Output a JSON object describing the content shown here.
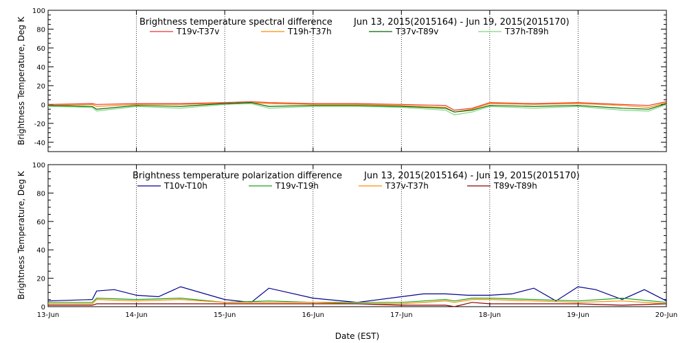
{
  "chart_data": [
    {
      "type": "line",
      "title": "Brightness temperature spectral difference",
      "date_range": "Jun 13, 2015(2015164) - Jun 19, 2015(2015170)",
      "ylabel": "Brightness Temperature, Deg K",
      "xlabel": "",
      "ylim": [
        -50,
        100
      ],
      "yticks": [
        "-40",
        "-20",
        "0",
        "20",
        "40",
        "60",
        "80",
        "100"
      ],
      "xlim": [
        0,
        7
      ],
      "xticks": [
        "13-Jun",
        "14-Jun",
        "15-Jun",
        "16-Jun",
        "17-Jun",
        "18-Jun",
        "19-Jun",
        "20-Jun"
      ],
      "grid": "vertical dotted",
      "series": [
        {
          "name": "T19v-T37v",
          "color": "#e8352a",
          "x": [
            0,
            0.5,
            0.55,
            1,
            1.5,
            2,
            2.3,
            2.5,
            3,
            3.5,
            4,
            4.5,
            4.6,
            4.8,
            5,
            5.5,
            6,
            6.5,
            6.8,
            7
          ],
          "values": [
            0,
            1,
            0,
            1,
            1,
            2,
            3,
            2,
            1,
            1,
            0,
            -1,
            -6,
            -4,
            2,
            1,
            2,
            0,
            -1,
            3
          ]
        },
        {
          "name": "T19h-T37h",
          "color": "#ff8c00",
          "x": [
            0,
            0.5,
            0.55,
            1,
            1.5,
            2,
            2.3,
            2.5,
            3,
            3.5,
            4,
            4.5,
            4.6,
            4.8,
            5,
            5.5,
            6,
            6.5,
            6.8,
            7
          ],
          "values": [
            -1,
            0,
            -2,
            0,
            0,
            1,
            2,
            1,
            0,
            0,
            -1,
            -3,
            -8,
            -5,
            1,
            0,
            1,
            -1,
            -3,
            2
          ]
        },
        {
          "name": "T37v-T89v",
          "color": "#006400",
          "x": [
            0,
            0.5,
            0.55,
            1,
            1.5,
            2,
            2.3,
            2.5,
            3,
            3.5,
            4,
            4.5,
            4.6,
            4.8,
            5,
            5.5,
            6,
            6.5,
            6.8,
            7
          ],
          "values": [
            -1,
            -2,
            -5,
            -1,
            -2,
            1,
            2,
            -2,
            -1,
            -1,
            -2,
            -4,
            -8,
            -6,
            -1,
            -2,
            -1,
            -4,
            -5,
            1
          ]
        },
        {
          "name": "T37h-T89h",
          "color": "#7cd67c",
          "x": [
            0,
            0.5,
            0.55,
            1,
            1.5,
            2,
            2.3,
            2.5,
            3,
            3.5,
            4,
            4.5,
            4.6,
            4.8,
            5,
            5.5,
            6,
            6.5,
            6.8,
            7
          ],
          "values": [
            -2,
            -3,
            -7,
            -2,
            -4,
            0,
            1,
            -4,
            -2,
            -2,
            -3,
            -6,
            -11,
            -8,
            -2,
            -4,
            -2,
            -6,
            -7,
            0
          ]
        }
      ]
    },
    {
      "type": "line",
      "title": "Brightness temperature polarization difference",
      "date_range": "Jun 13, 2015(2015164) - Jun 19, 2015(2015170)",
      "ylabel": "Brightness Temperature, Deg K",
      "xlabel": "Date (EST)",
      "ylim": [
        0,
        100
      ],
      "yticks": [
        "0",
        "20",
        "40",
        "60",
        "80",
        "100"
      ],
      "xlim": [
        0,
        7
      ],
      "xticks": [
        "13-Jun",
        "14-Jun",
        "15-Jun",
        "16-Jun",
        "17-Jun",
        "18-Jun",
        "19-Jun",
        "20-Jun"
      ],
      "grid": "vertical dotted",
      "series": [
        {
          "name": "T10v-T10h",
          "color": "#00008b",
          "x": [
            0,
            0.5,
            0.55,
            0.75,
            1,
            1.25,
            1.5,
            2,
            2.3,
            2.5,
            3,
            3.5,
            4,
            4.25,
            4.5,
            4.75,
            5,
            5.25,
            5.5,
            5.75,
            6,
            6.2,
            6.5,
            6.75,
            7
          ],
          "values": [
            4,
            5,
            11,
            12,
            8,
            7,
            14,
            5,
            3,
            13,
            6,
            3,
            7,
            9,
            9,
            8,
            8,
            9,
            13,
            4,
            14,
            12,
            5,
            12,
            4
          ]
        },
        {
          "name": "T19v-T19h",
          "color": "#1aa31a",
          "x": [
            0,
            0.5,
            0.55,
            1,
            1.5,
            2,
            2.5,
            3,
            3.5,
            4,
            4.5,
            4.6,
            4.8,
            5,
            5.5,
            6,
            6.5,
            7
          ],
          "values": [
            3,
            3,
            6,
            5,
            6,
            3,
            4,
            3,
            3,
            3,
            5,
            4,
            6,
            6,
            5,
            4,
            6,
            3
          ]
        },
        {
          "name": "T37v-T37h",
          "color": "#ff8c00",
          "x": [
            0,
            0.5,
            0.55,
            1,
            1.5,
            2,
            2.5,
            3,
            3.5,
            4,
            4.5,
            4.6,
            4.8,
            5,
            5.5,
            6,
            6.5,
            7
          ],
          "values": [
            2,
            2,
            5,
            4,
            5,
            3,
            3,
            3,
            2,
            2,
            4,
            3,
            5,
            5,
            4,
            3,
            4,
            2
          ]
        },
        {
          "name": "T89v-T89h",
          "color": "#8b0000",
          "x": [
            0,
            0.5,
            0.55,
            1,
            1.5,
            2,
            2.5,
            3,
            3.5,
            4,
            4.5,
            4.6,
            4.8,
            5,
            5.5,
            6,
            6.5,
            7
          ],
          "values": [
            1,
            1,
            2,
            2,
            2,
            2,
            2,
            2,
            2,
            1,
            1,
            0,
            3,
            2,
            2,
            2,
            1,
            2
          ]
        }
      ]
    }
  ]
}
